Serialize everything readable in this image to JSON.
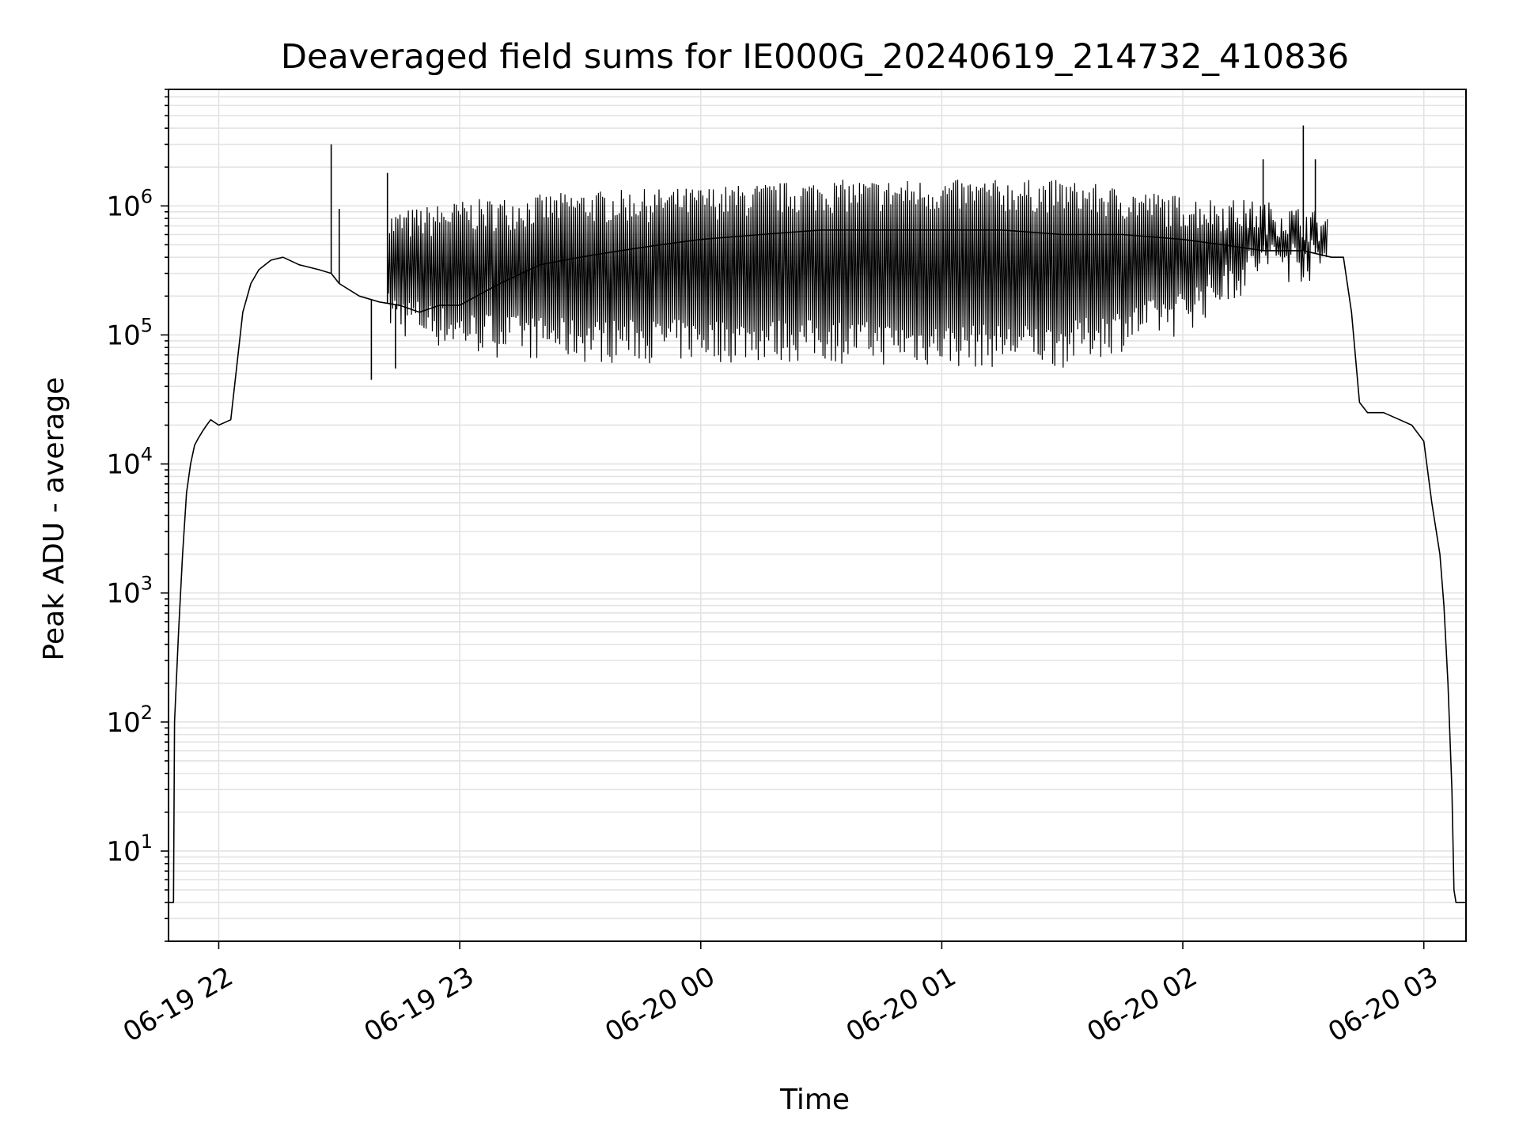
{
  "chart_data": {
    "type": "line",
    "title": "Deaveraged field sums for IE000G_20240619_214732_410836",
    "xlabel": "Time",
    "ylabel": "Peak ADU - average",
    "yscale": "log",
    "ylim": [
      2,
      8000000
    ],
    "xlim": [
      "2024-06-19 21:47:30",
      "2024-06-20 03:10:30"
    ],
    "grid": true,
    "x_ticks": [
      {
        "label": "06-19 22",
        "time": "2024-06-19 22:00:00"
      },
      {
        "label": "06-19 23",
        "time": "2024-06-19 23:00:00"
      },
      {
        "label": "06-20 00",
        "time": "2024-06-20 00:00:00"
      },
      {
        "label": "06-20 01",
        "time": "2024-06-20 01:00:00"
      },
      {
        "label": "06-20 02",
        "time": "2024-06-20 02:00:00"
      },
      {
        "label": "06-20 03",
        "time": "2024-06-20 03:00:00"
      }
    ],
    "y_ticks": [
      {
        "exp": "1",
        "value": 10
      },
      {
        "exp": "2",
        "value": 100
      },
      {
        "exp": "3",
        "value": 1000
      },
      {
        "exp": "4",
        "value": 10000
      },
      {
        "exp": "5",
        "value": 100000
      },
      {
        "exp": "6",
        "value": 1000000
      }
    ],
    "y_tick_base": "10",
    "series": [
      {
        "color": "#000000",
        "x": [
          "2024-06-19 21:47:30",
          "2024-06-19 21:48:45",
          "2024-06-19 21:49:00",
          "2024-06-19 21:50:00",
          "2024-06-19 21:51:00",
          "2024-06-19 21:52:00",
          "2024-06-19 21:53:00",
          "2024-06-19 21:54:00",
          "2024-06-19 21:55:00",
          "2024-06-19 21:56:00",
          "2024-06-19 21:57:00",
          "2024-06-19 21:58:00",
          "2024-06-19 22:00:00",
          "2024-06-19 22:03:00",
          "2024-06-19 22:06:00",
          "2024-06-19 22:08:00",
          "2024-06-19 22:10:00",
          "2024-06-19 22:13:00",
          "2024-06-19 22:16:00",
          "2024-06-19 22:20:00",
          "2024-06-19 22:25:00",
          "2024-06-19 22:28:00",
          "2024-06-19 22:30:00",
          "2024-06-19 22:35:00",
          "2024-06-19 22:40:00",
          "2024-06-19 22:45:00",
          "2024-06-19 22:50:00",
          "2024-06-19 22:55:00",
          "2024-06-19 23:00:00",
          "2024-06-19 23:10:00",
          "2024-06-19 23:20:00",
          "2024-06-19 23:30:00",
          "2024-06-19 23:40:00",
          "2024-06-19 23:50:00",
          "2024-06-20 00:00:00",
          "2024-06-20 00:15:00",
          "2024-06-20 00:30:00",
          "2024-06-20 00:45:00",
          "2024-06-20 01:00:00",
          "2024-06-20 01:15:00",
          "2024-06-20 01:30:00",
          "2024-06-20 01:45:00",
          "2024-06-20 02:00:00",
          "2024-06-20 02:10:00",
          "2024-06-20 02:20:00",
          "2024-06-20 02:30:00",
          "2024-06-20 02:37:00",
          "2024-06-20 02:40:00",
          "2024-06-20 02:42:00",
          "2024-06-20 02:44:00",
          "2024-06-20 02:46:00",
          "2024-06-20 02:50:00",
          "2024-06-20 02:54:00",
          "2024-06-20 02:57:00",
          "2024-06-20 03:00:00",
          "2024-06-20 03:02:00",
          "2024-06-20 03:04:00",
          "2024-06-20 03:05:00",
          "2024-06-20 03:06:00",
          "2024-06-20 03:07:00",
          "2024-06-20 03:07:30",
          "2024-06-20 03:08:00",
          "2024-06-20 03:10:30"
        ],
        "y": [
          4,
          4,
          100,
          500,
          2000,
          6000,
          10000,
          14000,
          16000,
          18000,
          20000,
          22000,
          20000,
          22000,
          150000,
          250000,
          320000,
          380000,
          400000,
          350000,
          320000,
          300000,
          250000,
          200000,
          180000,
          170000,
          150000,
          170000,
          170000,
          250000,
          350000,
          400000,
          450000,
          500000,
          550000,
          600000,
          650000,
          650000,
          650000,
          650000,
          600000,
          600000,
          550000,
          500000,
          450000,
          450000,
          400000,
          400000,
          150000,
          30000,
          25000,
          25000,
          22000,
          20000,
          15000,
          5000,
          2000,
          800,
          200,
          30,
          5,
          4,
          4
        ]
      }
    ],
    "upper_envelope": {
      "x": [
        "2024-06-19 22:42:00",
        "2024-06-19 23:00:00",
        "2024-06-19 23:30:00",
        "2024-06-20 00:00:00",
        "2024-06-20 00:30:00",
        "2024-06-20 01:00:00",
        "2024-06-20 01:30:00",
        "2024-06-20 02:00:00",
        "2024-06-20 02:20:00",
        "2024-06-20 02:36:00"
      ],
      "y": [
        900000,
        1100000,
        1300000,
        1400000,
        1600000,
        1600000,
        1600000,
        1200000,
        1100000,
        900000
      ]
    },
    "lower_envelope": {
      "x": [
        "2024-06-19 22:42:00",
        "2024-06-19 23:00:00",
        "2024-06-19 23:30:00",
        "2024-06-20 00:00:00",
        "2024-06-20 00:30:00",
        "2024-06-20 01:00:00",
        "2024-06-20 01:30:00",
        "2024-06-20 02:00:00",
        "2024-06-20 02:20:00",
        "2024-06-20 02:36:00"
      ],
      "y": [
        100000,
        70000,
        60000,
        60000,
        60000,
        55000,
        55000,
        100000,
        250000,
        250000
      ]
    },
    "spikes": [
      {
        "x": "2024-06-19 22:28:00",
        "y": 3000000
      },
      {
        "x": "2024-06-19 22:30:00",
        "y": 950000
      },
      {
        "x": "2024-06-19 22:38:00",
        "y": 45000
      },
      {
        "x": "2024-06-19 22:42:00",
        "y": 1800000
      },
      {
        "x": "2024-06-19 22:44:00",
        "y": 55000
      },
      {
        "x": "2024-06-20 02:20:00",
        "y": 2300000
      },
      {
        "x": "2024-06-20 02:30:00",
        "y": 4200000
      },
      {
        "x": "2024-06-20 02:33:00",
        "y": 2300000
      }
    ]
  }
}
